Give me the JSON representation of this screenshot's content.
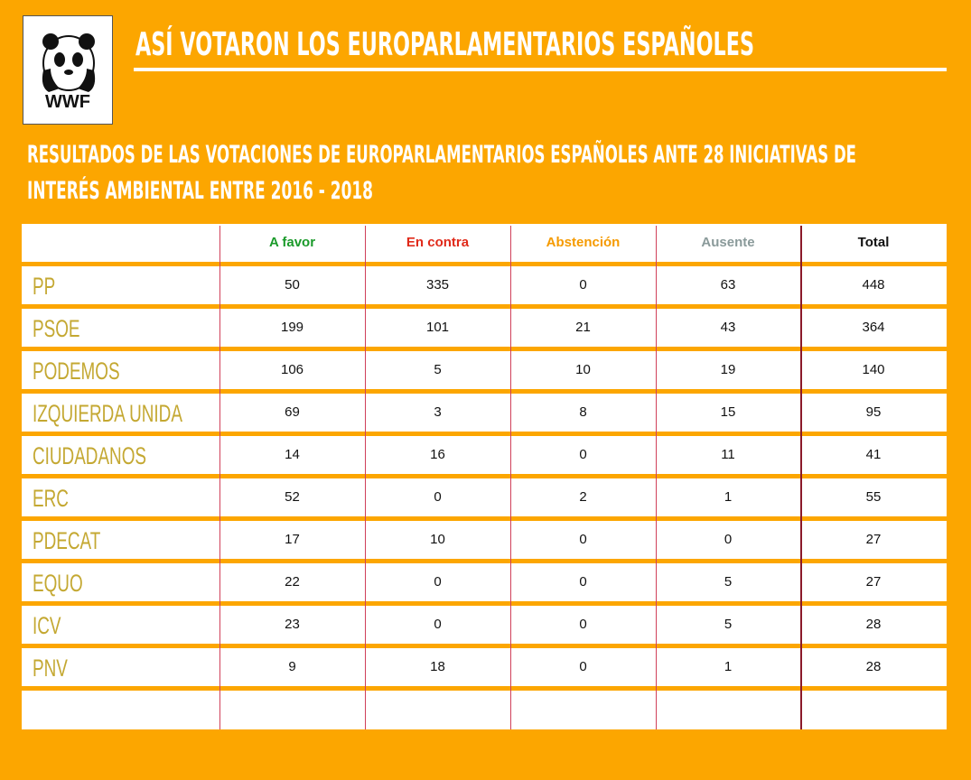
{
  "logo": {
    "text": "WWF"
  },
  "header": {
    "title": "ASÍ VOTARON LOS EUROPARLAMENTARIOS ESPAÑOLES",
    "subtitle": [
      "RESULTADOS DE LAS VOTACIONES DE EUROPARLAMENTARIOS ESPAÑOLES ANTE 28 INICIATIVAS DE",
      "INTERÉS AMBIENTAL ENTRE 2016 - 2018"
    ]
  },
  "table": {
    "columns": [
      "A favor",
      "En contra",
      "Abstención",
      "Ausente",
      "Total"
    ],
    "rows": [
      {
        "party": "PP",
        "values": [
          50,
          335,
          0,
          63,
          448
        ]
      },
      {
        "party": "PSOE",
        "values": [
          199,
          101,
          21,
          43,
          364
        ]
      },
      {
        "party": "PODEMOS",
        "values": [
          106,
          5,
          10,
          19,
          140
        ]
      },
      {
        "party": "IZQUIERDA UNIDA",
        "values": [
          69,
          3,
          8,
          15,
          95
        ]
      },
      {
        "party": "CIUDADANOS",
        "values": [
          14,
          16,
          0,
          11,
          41
        ]
      },
      {
        "party": "ERC",
        "values": [
          52,
          0,
          2,
          1,
          55
        ]
      },
      {
        "party": "PDECAT",
        "values": [
          17,
          10,
          0,
          0,
          27
        ]
      },
      {
        "party": "EQUO",
        "values": [
          22,
          0,
          0,
          5,
          27
        ]
      },
      {
        "party": "ICV",
        "values": [
          23,
          0,
          0,
          5,
          28
        ]
      },
      {
        "party": "PNV",
        "values": [
          9,
          18,
          0,
          1,
          28
        ]
      }
    ]
  }
}
